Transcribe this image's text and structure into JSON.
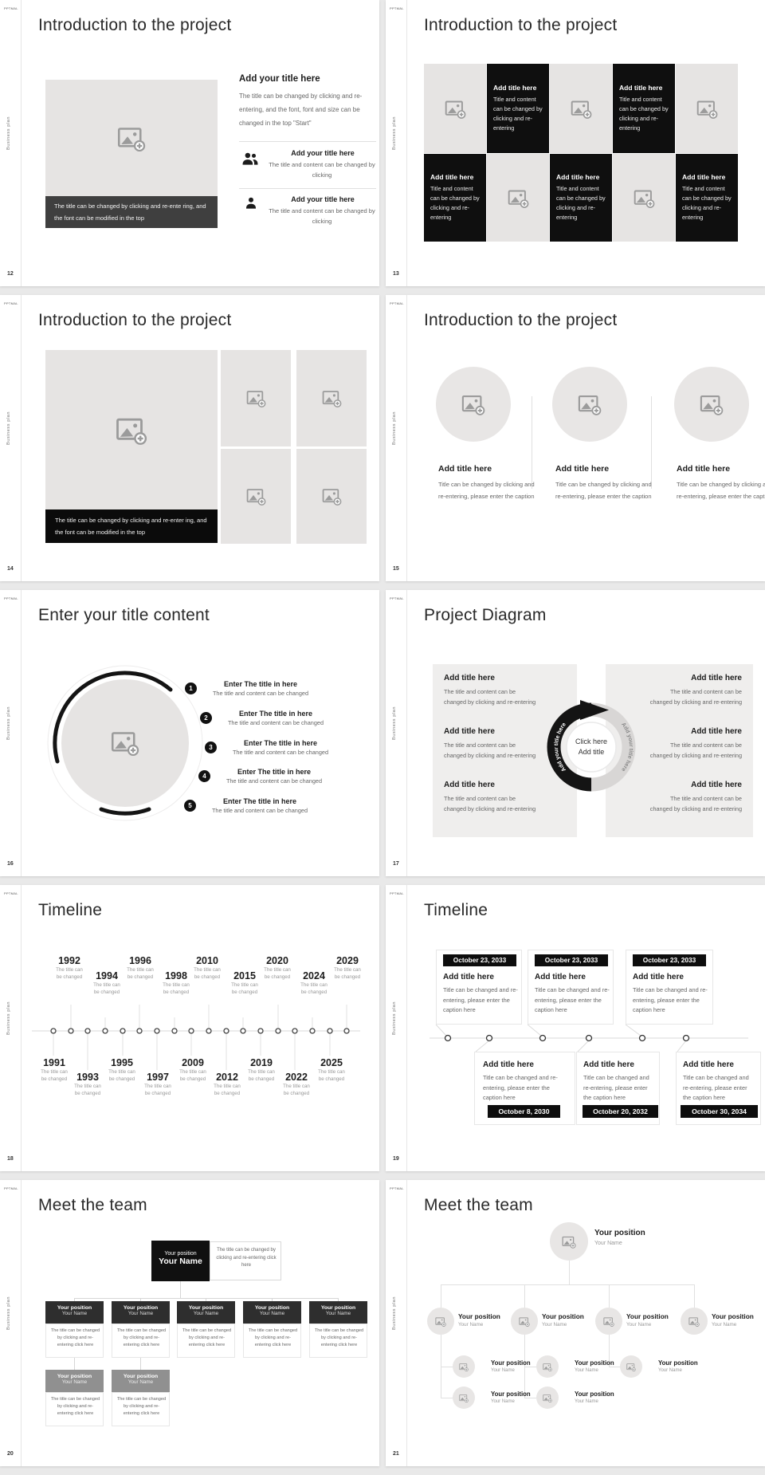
{
  "chrome": {
    "logo": "PPTMAL",
    "sidebar_label": "Business plan"
  },
  "slides": {
    "s12": {
      "page": "12",
      "title": "Introduction to the project",
      "caption": "The title can be changed by clicking and re-ente ring, and the font can be modified in the top",
      "heading": "Add your title here",
      "paragraph": "The title can be changed by clicking and re-entering, and the font, font and size can be changed in the top \"Start\"",
      "items": [
        {
          "title": "Add your title here",
          "body": "The title and content can be changed by clicking"
        },
        {
          "title": "Add your title here",
          "body": "The title and content can be changed by clicking"
        }
      ]
    },
    "s13": {
      "page": "13",
      "title": "Introduction to the project",
      "tile_title": "Add title here",
      "tile_body": "Title and content can be changed by clicking and re-entering"
    },
    "s14": {
      "page": "14",
      "title": "Introduction to the project",
      "caption": "The title can be changed by clicking and re-enter ing, and the font can be modified in the top"
    },
    "s15": {
      "page": "15",
      "title": "Introduction to the project",
      "card_title": "Add title here",
      "card_body": "Title can be changed by clicking and re-entering, please enter the caption"
    },
    "s16": {
      "page": "16",
      "title": "Enter your title content",
      "numbers": [
        "1",
        "2",
        "3",
        "4",
        "5"
      ],
      "item_title": "Enter The title in here",
      "item_body": "The title and content can be changed"
    },
    "s17": {
      "page": "17",
      "title": "Project Diagram",
      "item_title": "Add title here",
      "item_body": "The title and content can be changed by clicking and re-entering",
      "center_line1": "Click here",
      "center_line2": "Add title",
      "arc_label": "Add your title here"
    },
    "s18": {
      "page": "18",
      "title": "Timeline",
      "note_line1": "The title can",
      "note_line2": "be changed",
      "top_years": [
        "1992",
        "1994",
        "1996",
        "1998",
        "2010",
        "2015",
        "2020",
        "2024",
        "2029"
      ],
      "bottom_years": [
        "1991",
        "1993",
        "1995",
        "1997",
        "2009",
        "2012",
        "2019",
        "2022",
        "2025"
      ]
    },
    "s19": {
      "page": "19",
      "title": "Timeline",
      "card_title": "Add title here",
      "card_body": "Title can be changed and re-entering, please enter the caption here",
      "top_dates": [
        "October 23, 2033",
        "October 23, 2033",
        "October 23, 2033"
      ],
      "bottom_dates": [
        "October 8, 2030",
        "October 20, 2032",
        "October 30, 2034"
      ]
    },
    "s20": {
      "page": "20",
      "title": "Meet the team",
      "position": "Your position",
      "name": "Your Name",
      "note": "The title can be changed by clicking and re-entering click here"
    },
    "s21": {
      "page": "21",
      "title": "Meet the team",
      "position": "Your position",
      "name": "Your Name"
    }
  }
}
